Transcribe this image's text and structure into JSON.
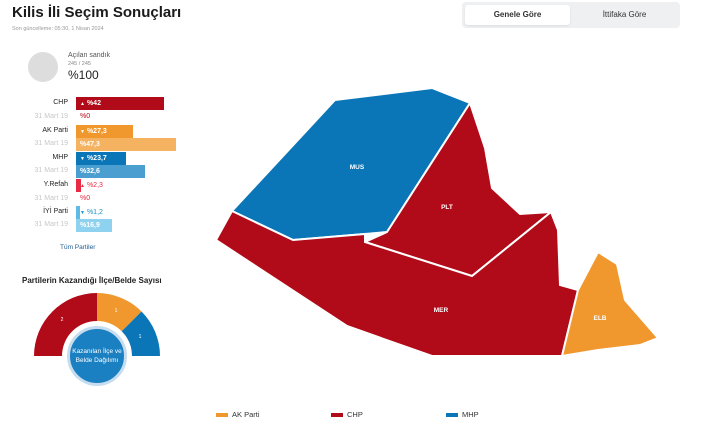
{
  "header": {
    "title": "Kilis İli Seçim Sonuçları",
    "updated": "Son güncelleme: 05:30, 1 Nisan 2024"
  },
  "tabs": [
    {
      "label": "Genele Göre",
      "active": true
    },
    {
      "label": "İttifaka Göre",
      "active": false
    }
  ],
  "summary": {
    "opened_label": "Açılan sandık",
    "opened_count": "245 / 245",
    "opened_percent": "%100",
    "opened_fraction": 1.0
  },
  "colors": {
    "chp": "#b10a18",
    "akp": "#f0972e",
    "akp_prev": "#f5b261",
    "mhp": "#0b76b7",
    "mhp_prev": "#4b9fd0",
    "refah": "#e82a44",
    "iyi": "#5dbbe5",
    "iyi_prev": "#8fd2f0"
  },
  "parties": [
    {
      "name": "CHP",
      "current": "%42",
      "previous_label": "31 Mart 19",
      "previous": "%0",
      "icon": "up-arrow-icon"
    },
    {
      "name": "AK Parti",
      "current": "%27,3",
      "previous_label": "31 Mart 19",
      "previous": "%47,3",
      "icon": "down-arrow-icon"
    },
    {
      "name": "MHP",
      "current": "%23,7",
      "previous_label": "31 Mart 19",
      "previous": "%32,6",
      "icon": "down-arrow-icon"
    },
    {
      "name": "Y.Refah",
      "current": "%2,3",
      "previous_label": "31 Mart 19",
      "previous": "%0",
      "icon": "up-arrow-icon"
    },
    {
      "name": "İYİ Parti",
      "current": "%1,2",
      "previous_label": "31 Mart 19",
      "previous": "%16,9",
      "icon": "down-arrow-icon"
    }
  ],
  "all_parties_link": "Tüm Partiler",
  "won": {
    "title": "Partilerin Kazandığı İlçe/Belde Sayısı",
    "segments": [
      {
        "party": "CHP",
        "count": "2"
      },
      {
        "party": "AK Parti",
        "count": "1"
      },
      {
        "party": "MHP",
        "count": "1"
      }
    ],
    "button_label": "Kazanılan İlçe ve Belde Dağılımı"
  },
  "map": {
    "regions": [
      {
        "label": "MUS",
        "party": "MHP"
      },
      {
        "label": "PLT",
        "party": "CHP"
      },
      {
        "label": "MER",
        "party": "CHP"
      },
      {
        "label": "ELB",
        "party": "AK Parti"
      }
    ]
  },
  "legend": [
    {
      "label": "AK Parti",
      "color": "#f0972e"
    },
    {
      "label": "CHP",
      "color": "#b10a18"
    },
    {
      "label": "MHP",
      "color": "#0b76b7"
    }
  ]
}
